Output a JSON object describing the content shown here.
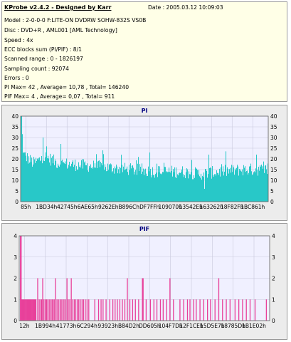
{
  "info": {
    "title": "KProbe v2.4.2 - Designed by Karr",
    "date": "Date : 2005.03.12 10:09:03",
    "lines": [
      "Model : 2-0-0-0 F:LITE-ON DVDRW SOHW-832S  VS0B",
      "Disc : DVD+R , AML001 [AML Technology]",
      "Speed : 4x",
      "ECC blocks sum (PI/PIF) : 8/1",
      "Scanned range : 0 - 1826197",
      "Sampling count : 92074",
      "Errors : 0",
      "PI Max= 42 , Average= 10,78 , Total= 146240",
      "PIF Max= 4 , Average= 0,07 , Total= 911"
    ]
  },
  "colors": {
    "pi": "#28c8c8",
    "pif": "#e8409a",
    "plot_bg": "#f0f0ff",
    "title": "#000080"
  },
  "chart_data": [
    {
      "type": "bar",
      "title": "PI",
      "ylim": [
        0,
        40
      ],
      "yticks": [
        0,
        5,
        10,
        15,
        20,
        25,
        30,
        35,
        40
      ],
      "xtick_labels": [
        "85h",
        "1BD34h",
        "42745h",
        "6AE65h",
        "9262Eh",
        "B896Ch",
        "DF7FFh",
        "109070h",
        "13542Eh",
        "163262h",
        "18F82Fh",
        "1BC861h"
      ],
      "x_range": [
        0,
        1826197
      ],
      "sample_count": 92074,
      "profile": [
        {
          "x": 0.0,
          "y": 42
        },
        {
          "x": 0.01,
          "y": 22
        },
        {
          "x": 0.05,
          "y": 18
        },
        {
          "x": 0.1,
          "y": 21
        },
        {
          "x": 0.15,
          "y": 18
        },
        {
          "x": 0.25,
          "y": 17
        },
        {
          "x": 0.35,
          "y": 16
        },
        {
          "x": 0.45,
          "y": 15
        },
        {
          "x": 0.55,
          "y": 14
        },
        {
          "x": 0.65,
          "y": 14
        },
        {
          "x": 0.72,
          "y": 13
        },
        {
          "x": 0.8,
          "y": 14
        },
        {
          "x": 0.9,
          "y": 15
        },
        {
          "x": 1.0,
          "y": 15
        }
      ],
      "notable_spikes": [
        {
          "x": 0.003,
          "y": 42
        },
        {
          "x": 0.09,
          "y": 30
        },
        {
          "x": 0.16,
          "y": 27
        },
        {
          "x": 0.33,
          "y": 24
        },
        {
          "x": 0.52,
          "y": 23
        },
        {
          "x": 0.76,
          "y": 22
        },
        {
          "x": 0.95,
          "y": 22
        }
      ],
      "notable_dips": [
        {
          "x": 0.74,
          "y": 6
        }
      ]
    },
    {
      "type": "bar",
      "title": "PIF",
      "ylim": [
        0,
        4
      ],
      "yticks": [
        0,
        1,
        2,
        3,
        4
      ],
      "xtick_labels": [
        "12h",
        "1B994h",
        "41773h",
        "6C294h",
        "93923h",
        "B84D2h",
        "DD605h",
        "104F7Dh",
        "12F1CEh",
        "15D5E7h",
        "18785Dh",
        "1B1E02h"
      ],
      "x_range": [
        0,
        1826197
      ],
      "sample_count": 92074,
      "bars": [
        {
          "x": 0.003,
          "y": 4
        },
        {
          "x": 0.006,
          "y": 4
        },
        {
          "x": 0.008,
          "y": 1
        },
        {
          "x": 0.011,
          "y": 1
        },
        {
          "x": 0.014,
          "y": 1
        },
        {
          "x": 0.017,
          "y": 1
        },
        {
          "x": 0.02,
          "y": 1
        },
        {
          "x": 0.023,
          "y": 1
        },
        {
          "x": 0.026,
          "y": 1
        },
        {
          "x": 0.029,
          "y": 1
        },
        {
          "x": 0.032,
          "y": 1
        },
        {
          "x": 0.035,
          "y": 1
        },
        {
          "x": 0.038,
          "y": 1
        },
        {
          "x": 0.041,
          "y": 1
        },
        {
          "x": 0.044,
          "y": 1
        },
        {
          "x": 0.047,
          "y": 1
        },
        {
          "x": 0.05,
          "y": 1
        },
        {
          "x": 0.053,
          "y": 1
        },
        {
          "x": 0.056,
          "y": 1
        },
        {
          "x": 0.059,
          "y": 1
        },
        {
          "x": 0.062,
          "y": 1
        },
        {
          "x": 0.065,
          "y": 1
        },
        {
          "x": 0.072,
          "y": 2
        },
        {
          "x": 0.078,
          "y": 1
        },
        {
          "x": 0.084,
          "y": 1
        },
        {
          "x": 0.088,
          "y": 1
        },
        {
          "x": 0.092,
          "y": 2
        },
        {
          "x": 0.097,
          "y": 1
        },
        {
          "x": 0.103,
          "y": 1
        },
        {
          "x": 0.107,
          "y": 1
        },
        {
          "x": 0.112,
          "y": 1
        },
        {
          "x": 0.118,
          "y": 1
        },
        {
          "x": 0.124,
          "y": 1
        },
        {
          "x": 0.129,
          "y": 1
        },
        {
          "x": 0.133,
          "y": 1
        },
        {
          "x": 0.138,
          "y": 1
        },
        {
          "x": 0.143,
          "y": 2
        },
        {
          "x": 0.149,
          "y": 1
        },
        {
          "x": 0.155,
          "y": 1
        },
        {
          "x": 0.161,
          "y": 1
        },
        {
          "x": 0.166,
          "y": 1
        },
        {
          "x": 0.172,
          "y": 1
        },
        {
          "x": 0.177,
          "y": 1
        },
        {
          "x": 0.183,
          "y": 1
        },
        {
          "x": 0.189,
          "y": 2
        },
        {
          "x": 0.194,
          "y": 1
        },
        {
          "x": 0.2,
          "y": 1
        },
        {
          "x": 0.206,
          "y": 2
        },
        {
          "x": 0.212,
          "y": 1
        },
        {
          "x": 0.218,
          "y": 1
        },
        {
          "x": 0.224,
          "y": 1
        },
        {
          "x": 0.23,
          "y": 1
        },
        {
          "x": 0.236,
          "y": 1
        },
        {
          "x": 0.242,
          "y": 1
        },
        {
          "x": 0.249,
          "y": 1
        },
        {
          "x": 0.255,
          "y": 1
        },
        {
          "x": 0.262,
          "y": 1
        },
        {
          "x": 0.269,
          "y": 1
        },
        {
          "x": 0.276,
          "y": 1
        },
        {
          "x": 0.3,
          "y": 1
        },
        {
          "x": 0.315,
          "y": 1
        },
        {
          "x": 0.325,
          "y": 1
        },
        {
          "x": 0.333,
          "y": 1
        },
        {
          "x": 0.345,
          "y": 1
        },
        {
          "x": 0.36,
          "y": 1
        },
        {
          "x": 0.372,
          "y": 1
        },
        {
          "x": 0.381,
          "y": 1
        },
        {
          "x": 0.39,
          "y": 1
        },
        {
          "x": 0.4,
          "y": 1
        },
        {
          "x": 0.41,
          "y": 1
        },
        {
          "x": 0.42,
          "y": 1
        },
        {
          "x": 0.43,
          "y": 2
        },
        {
          "x": 0.44,
          "y": 1
        },
        {
          "x": 0.451,
          "y": 1
        },
        {
          "x": 0.462,
          "y": 1
        },
        {
          "x": 0.475,
          "y": 1
        },
        {
          "x": 0.49,
          "y": 2
        },
        {
          "x": 0.493,
          "y": 2
        },
        {
          "x": 0.505,
          "y": 1
        },
        {
          "x": 0.522,
          "y": 1
        },
        {
          "x": 0.536,
          "y": 1
        },
        {
          "x": 0.548,
          "y": 1
        },
        {
          "x": 0.562,
          "y": 1
        },
        {
          "x": 0.573,
          "y": 1
        },
        {
          "x": 0.587,
          "y": 1
        },
        {
          "x": 0.6,
          "y": 2
        },
        {
          "x": 0.614,
          "y": 1
        },
        {
          "x": 0.64,
          "y": 1
        },
        {
          "x": 0.655,
          "y": 1
        },
        {
          "x": 0.67,
          "y": 1
        },
        {
          "x": 0.68,
          "y": 1
        },
        {
          "x": 0.695,
          "y": 1
        },
        {
          "x": 0.705,
          "y": 1
        },
        {
          "x": 0.72,
          "y": 1
        },
        {
          "x": 0.735,
          "y": 1
        },
        {
          "x": 0.75,
          "y": 1
        },
        {
          "x": 0.762,
          "y": 1
        },
        {
          "x": 0.78,
          "y": 1
        },
        {
          "x": 0.795,
          "y": 2
        },
        {
          "x": 0.81,
          "y": 1
        },
        {
          "x": 0.825,
          "y": 1
        },
        {
          "x": 0.84,
          "y": 1
        },
        {
          "x": 0.86,
          "y": 1
        },
        {
          "x": 0.875,
          "y": 1
        },
        {
          "x": 0.89,
          "y": 1
        },
        {
          "x": 0.905,
          "y": 1
        },
        {
          "x": 0.92,
          "y": 1
        },
        {
          "x": 0.94,
          "y": 1
        },
        {
          "x": 0.985,
          "y": 1
        }
      ]
    }
  ]
}
